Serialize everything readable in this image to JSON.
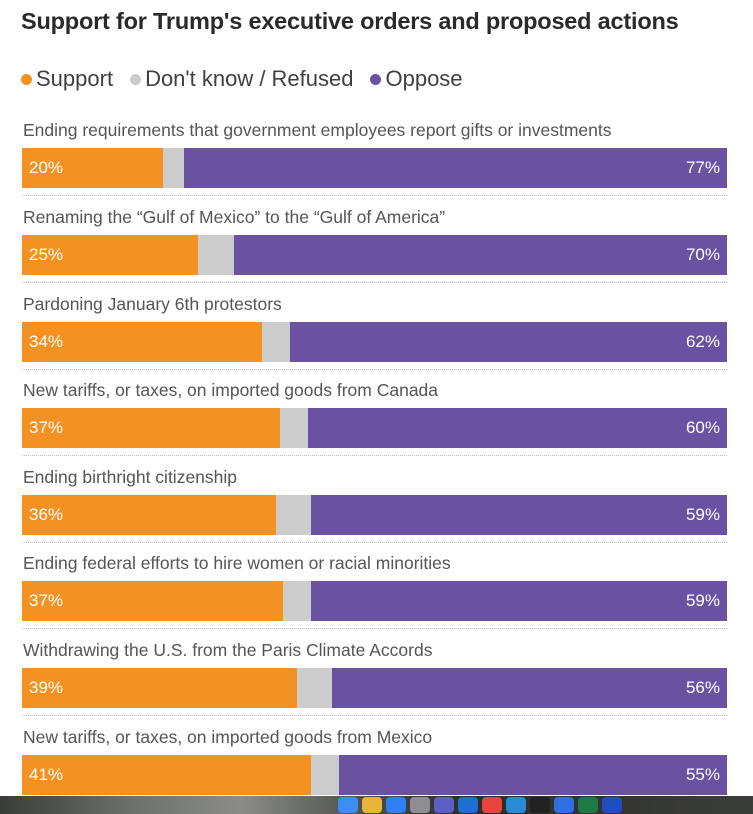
{
  "chart_data": {
    "type": "bar",
    "orientation": "horizontal-stacked-100",
    "title": "Support for Trump's executive orders and proposed actions",
    "legend": [
      {
        "key": "support",
        "label": "Support",
        "color": "#f39222"
      },
      {
        "key": "dk",
        "label": "Don't know / Refused",
        "color": "#cccccc"
      },
      {
        "key": "oppose",
        "label": "Oppose",
        "color": "#6a52a3"
      }
    ],
    "legend_position": "top-left",
    "categories": [
      "Ending requirements that government employees report gifts or investments",
      "Renaming the “Gulf of Mexico” to the “Gulf of America”",
      "Pardoning January 6th protestors",
      "New tariffs, or taxes, on imported goods from Canada",
      "Ending birthright citizenship",
      "Ending federal efforts to hire women or racial minorities",
      "Withdrawing the U.S. from the Paris Climate Accords",
      "New tariffs, or taxes, on imported goods from Mexico"
    ],
    "series": [
      {
        "key": "support",
        "values": [
          20,
          25,
          34,
          37,
          36,
          37,
          39,
          41
        ]
      },
      {
        "key": "dk",
        "values": [
          3,
          5,
          4,
          4,
          5,
          4,
          5,
          4
        ]
      },
      {
        "key": "oppose",
        "values": [
          77,
          70,
          62,
          60,
          59,
          59,
          56,
          55
        ]
      }
    ],
    "data_labels": {
      "support": [
        "20%",
        "25%",
        "34%",
        "37%",
        "36%",
        "37%",
        "39%",
        "41%"
      ],
      "oppose": [
        "77%",
        "70%",
        "62%",
        "60%",
        "59%",
        "59%",
        "56%",
        "55%"
      ]
    },
    "xlim": [
      0,
      100
    ],
    "grid": false
  },
  "taskbar": {
    "icons": [
      "finder-icon",
      "launchpad-icon",
      "app-store-icon",
      "settings-icon",
      "teams-icon",
      "outlook-icon",
      "chrome-icon",
      "vscode-icon",
      "terminal-icon",
      "calendar-icon",
      "excel-icon",
      "word-icon"
    ]
  }
}
